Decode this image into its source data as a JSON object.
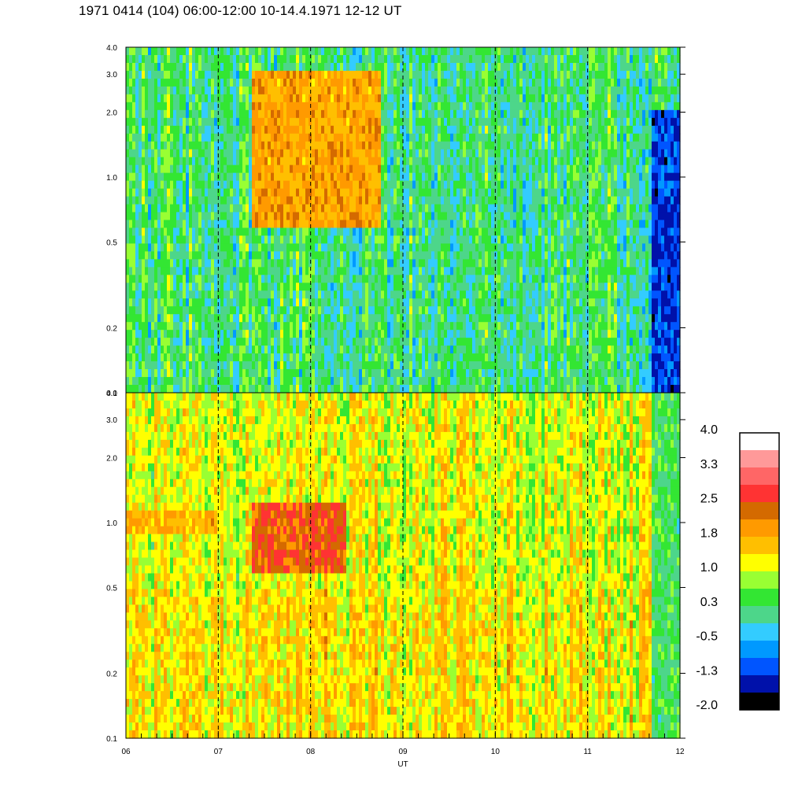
{
  "title": "1971 0414 (104) 06:00-12:00 10-14.4.1971  12-12 UT",
  "chart_data": {
    "type": "heatmap",
    "panels": [
      {
        "name": "upper",
        "y_scale": "log",
        "ylim": [
          0.1,
          4.0
        ],
        "y_ticks": [
          "4.0",
          "3.0",
          "2.0",
          "1.0",
          "0.5",
          "0.2",
          "0.1"
        ],
        "y_tick_values": [
          4.0,
          3.0,
          2.0,
          1.0,
          0.5,
          0.2,
          0.1
        ],
        "base_level": 0.4,
        "features": [
          {
            "t_start": 7.35,
            "t_end": 8.75,
            "y_min": 0.6,
            "y_max": 3.0,
            "level": 2.0,
            "note": "enhancement"
          },
          {
            "t_start": 11.7,
            "t_end": 12.0,
            "y_min": 0.1,
            "y_max": 2.0,
            "level": -1.0,
            "note": "depletion"
          }
        ]
      },
      {
        "name": "lower",
        "y_scale": "log",
        "ylim": [
          0.1,
          4.0
        ],
        "y_ticks": [
          "4.0",
          "3.0",
          "2.0",
          "1.0",
          "0.5",
          "0.2",
          "0.1"
        ],
        "y_tick_values": [
          4.0,
          3.0,
          2.0,
          1.0,
          0.5,
          0.2,
          0.1
        ],
        "base_level": 1.3,
        "features": [
          {
            "t_start": 6.0,
            "t_end": 7.0,
            "y_min": 0.85,
            "y_max": 1.1,
            "level": 1.9,
            "note": "band"
          },
          {
            "t_start": 7.35,
            "t_end": 8.4,
            "y_min": 0.6,
            "y_max": 1.2,
            "level": 2.6,
            "note": "enhancement"
          },
          {
            "t_start": 11.7,
            "t_end": 12.0,
            "y_min": 0.1,
            "y_max": 4.0,
            "level": 0.5,
            "note": "drop"
          }
        ]
      }
    ],
    "x_ticks": [
      "06",
      "07",
      "08",
      "09",
      "10",
      "11",
      "12"
    ],
    "x_tick_values": [
      6,
      7,
      8,
      9,
      10,
      11,
      12
    ],
    "xlim": [
      6,
      12
    ],
    "xlabel": "UT",
    "dashed_lines_at": [
      7,
      8,
      9,
      10,
      11
    ],
    "colorbar": {
      "labels": [
        "4.0",
        "3.3",
        "2.5",
        "1.8",
        "1.0",
        "0.3",
        "-0.5",
        "-1.3",
        "-2.0"
      ],
      "label_values": [
        4.0,
        3.3,
        2.5,
        1.8,
        1.0,
        0.3,
        -0.5,
        -1.3,
        -2.0
      ],
      "colors_top_to_bottom": [
        "#ffffff",
        "#ff9999",
        "#ff6666",
        "#ff3333",
        "#d46a00",
        "#ff9a00",
        "#ffbf00",
        "#ffff00",
        "#99ff33",
        "#33e633",
        "#4dd68a",
        "#33ccff",
        "#0099ff",
        "#0055ff",
        "#0011aa",
        "#000000"
      ]
    }
  }
}
